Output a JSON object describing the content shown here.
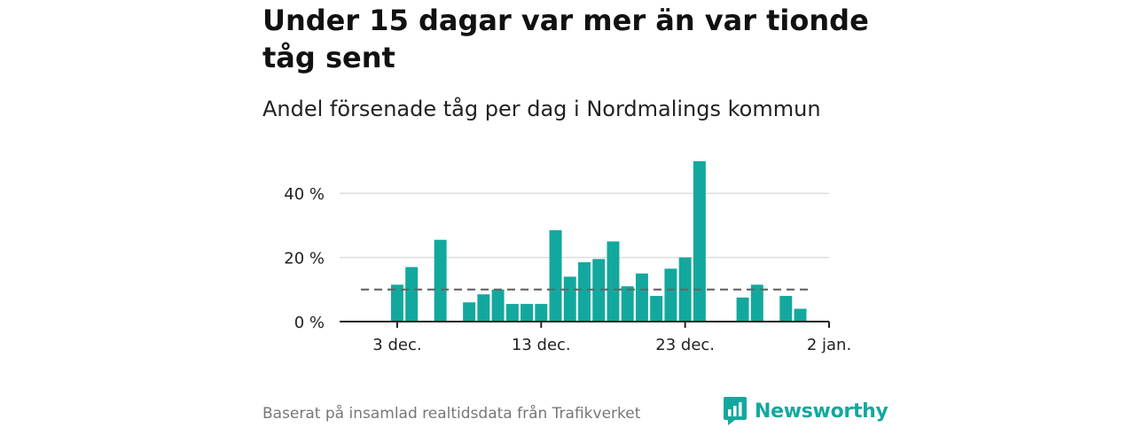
{
  "header": {
    "title": "Under 15 dagar var mer än var tionde tåg sent",
    "subtitle": "Andel försenade tåg per dag i Nordmalings kommun"
  },
  "footer": {
    "source": "Baserat på insamlad realtidsdata från Trafikverket",
    "brand": "Newsworthy"
  },
  "colors": {
    "bar": "#13a89e",
    "grid": "#dddddd",
    "axis": "#222222",
    "reference_line": "#666666",
    "brand": "#13a89e"
  },
  "icons": {
    "brand_logo": "newsworthy-bar-chart-icon"
  },
  "chart_data": {
    "type": "bar",
    "title": "Under 15 dagar var mer än var tionde tåg sent",
    "subtitle": "Andel försenade tåg per dag i Nordmalings kommun",
    "xlabel": "",
    "ylabel": "",
    "x_unit": "date",
    "x_range": [
      "2023-11-29",
      "2024-01-02"
    ],
    "ylim": [
      0,
      50
    ],
    "y_ticks": [
      {
        "value": 0,
        "label": "0 %"
      },
      {
        "value": 20,
        "label": "20 %"
      },
      {
        "value": 40,
        "label": "40 %"
      }
    ],
    "x_ticks": [
      {
        "date": "2023-12-03",
        "label": "3 dec."
      },
      {
        "date": "2023-12-13",
        "label": "13 dec."
      },
      {
        "date": "2023-12-23",
        "label": "23 dec."
      },
      {
        "date": "2024-01-02",
        "label": "2 jan."
      }
    ],
    "grid": true,
    "reference_line": {
      "value": 10,
      "style": "dashed"
    },
    "points": [
      {
        "date": "2023-12-03",
        "value": 11.5
      },
      {
        "date": "2023-12-04",
        "value": 17
      },
      {
        "date": "2023-12-06",
        "value": 25.5
      },
      {
        "date": "2023-12-08",
        "value": 6
      },
      {
        "date": "2023-12-09",
        "value": 8.5
      },
      {
        "date": "2023-12-10",
        "value": 10
      },
      {
        "date": "2023-12-11",
        "value": 5.5
      },
      {
        "date": "2023-12-12",
        "value": 5.5
      },
      {
        "date": "2023-12-13",
        "value": 5.5
      },
      {
        "date": "2023-12-14",
        "value": 28.5
      },
      {
        "date": "2023-12-15",
        "value": 14
      },
      {
        "date": "2023-12-16",
        "value": 18.5
      },
      {
        "date": "2023-12-17",
        "value": 19.5
      },
      {
        "date": "2023-12-18",
        "value": 25
      },
      {
        "date": "2023-12-19",
        "value": 11
      },
      {
        "date": "2023-12-20",
        "value": 15
      },
      {
        "date": "2023-12-21",
        "value": 8
      },
      {
        "date": "2023-12-22",
        "value": 16.5
      },
      {
        "date": "2023-12-23",
        "value": 20
      },
      {
        "date": "2023-12-24",
        "value": 50
      },
      {
        "date": "2023-12-27",
        "value": 7.5
      },
      {
        "date": "2023-12-28",
        "value": 11.5
      },
      {
        "date": "2023-12-30",
        "value": 8
      },
      {
        "date": "2023-12-31",
        "value": 4
      }
    ]
  }
}
